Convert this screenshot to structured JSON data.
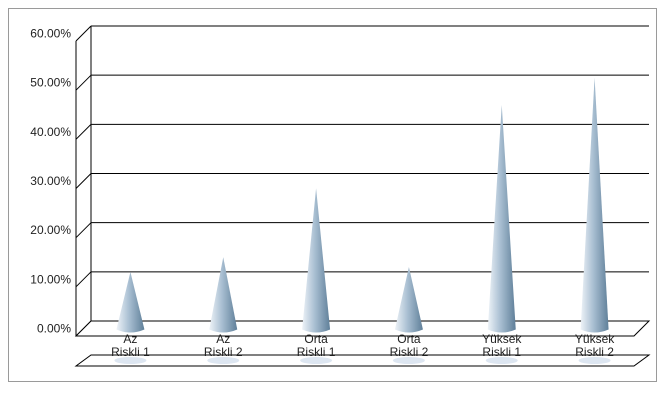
{
  "chart_data": {
    "type": "bar",
    "mark_shape": "cone",
    "categories": [
      [
        "Az",
        "Riskli 1"
      ],
      [
        "Az",
        "Riskli 2"
      ],
      [
        "Orta",
        "Riskli 1"
      ],
      [
        "Orta",
        "Riskli 2"
      ],
      [
        "Yüksek",
        "Riskli 1"
      ],
      [
        "Yüksek",
        "Riskli 2"
      ]
    ],
    "values": [
      11.5,
      14.5,
      28.5,
      12.5,
      45.5,
      51.0
    ],
    "yticks": [
      "0.00%",
      "10.00%",
      "20.00%",
      "30.00%",
      "40.00%",
      "50.00%",
      "60.00%"
    ],
    "ylim": [
      0,
      60
    ],
    "grid": true,
    "legend": "none",
    "colors": {
      "cone_light": "#eef3f8",
      "cone_mid": "#a9bfd2",
      "cone_dark": "#5f7f99",
      "gridline": "#000000",
      "frame": "#9a9a9a",
      "shadow": "#dde6f1"
    }
  }
}
